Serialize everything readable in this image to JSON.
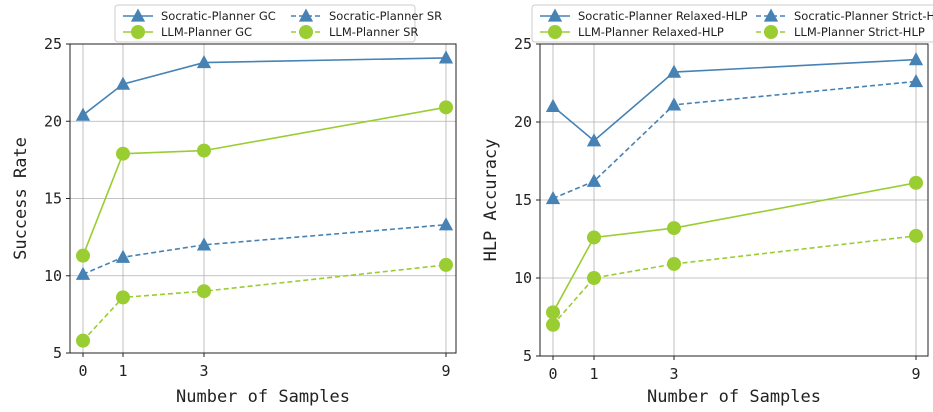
{
  "colors": {
    "socratic": "#4682b4",
    "llm": "#9acd32",
    "grid": "#b0b0b0"
  },
  "chart_data": [
    {
      "type": "line",
      "xlabel": "Number of Samples",
      "ylabel": "Success Rate",
      "x": [
        0,
        1,
        3,
        9
      ],
      "xticks": [
        "0",
        "1",
        "3",
        "9"
      ],
      "ylim": [
        5,
        25
      ],
      "yticks": [
        "5",
        "10",
        "15",
        "20",
        "25"
      ],
      "grid": true,
      "legend": "top-center",
      "series": [
        {
          "name": "Socratic-Planner GC",
          "values": [
            20.4,
            22.4,
            23.8,
            24.1
          ],
          "line": "solid",
          "marker": "triangle",
          "color_key": "socratic"
        },
        {
          "name": "Socratic-Planner SR",
          "values": [
            10.1,
            11.2,
            12.0,
            13.3
          ],
          "line": "dashed",
          "marker": "triangle",
          "color_key": "socratic"
        },
        {
          "name": "LLM-Planner GC",
          "values": [
            11.3,
            17.9,
            18.1,
            20.9
          ],
          "line": "solid",
          "marker": "circle",
          "color_key": "llm"
        },
        {
          "name": "LLM-Planner SR",
          "values": [
            5.8,
            8.6,
            9.0,
            10.7
          ],
          "line": "dashed",
          "marker": "circle",
          "color_key": "llm"
        }
      ]
    },
    {
      "type": "line",
      "xlabel": "Number of Samples",
      "ylabel": "HLP Accuracy",
      "x": [
        0,
        1,
        3,
        9
      ],
      "xticks": [
        "0",
        "1",
        "3",
        "9"
      ],
      "ylim": [
        5,
        25
      ],
      "yticks": [
        "5",
        "10",
        "15",
        "20",
        "25"
      ],
      "grid": true,
      "legend": "top-center",
      "series": [
        {
          "name": "Socratic-Planner Relaxed-HLP",
          "values": [
            21.0,
            18.8,
            23.2,
            24.0
          ],
          "line": "solid",
          "marker": "triangle",
          "color_key": "socratic"
        },
        {
          "name": "Socratic-Planner Strict-HLP",
          "values": [
            15.1,
            16.2,
            21.1,
            22.6
          ],
          "line": "dashed",
          "marker": "triangle",
          "color_key": "socratic"
        },
        {
          "name": "LLM-Planner Relaxed-HLP",
          "values": [
            7.8,
            12.6,
            13.2,
            16.1
          ],
          "line": "solid",
          "marker": "circle",
          "color_key": "llm"
        },
        {
          "name": "LLM-Planner Strict-HLP",
          "values": [
            7.0,
            10.0,
            10.9,
            12.7
          ],
          "line": "dashed",
          "marker": "circle",
          "color_key": "llm"
        }
      ]
    }
  ]
}
